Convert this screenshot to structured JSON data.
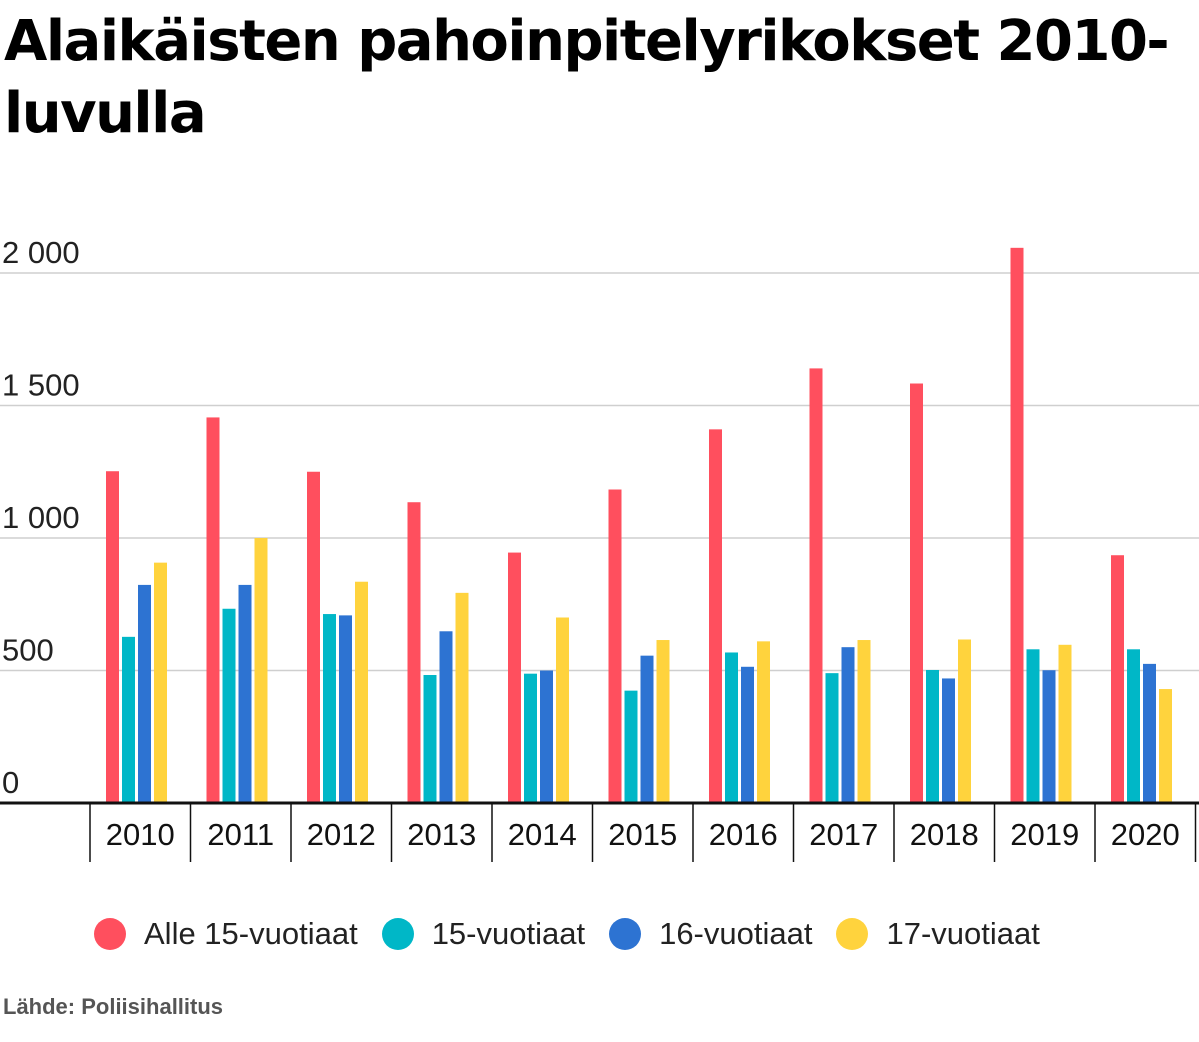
{
  "chart_data": {
    "type": "bar",
    "title": "Alaikäisten pahoinpitelyrikokset 2010-luvulla",
    "xlabel": "",
    "ylabel": "",
    "ylim": [
      0,
      2000
    ],
    "y_ticks": [
      0,
      500,
      1000,
      1500,
      2000
    ],
    "y_tick_labels": [
      "0",
      "500",
      "1 000",
      "1 500",
      "2 000"
    ],
    "grid": true,
    "legend_position": "bottom",
    "categories": [
      "2010",
      "2011",
      "2012",
      "2013",
      "2014",
      "2015",
      "2016",
      "2017",
      "2018",
      "2019",
      "2020"
    ],
    "series": [
      {
        "name": "Alle 15-vuotiaat",
        "color": "#ff4f5e",
        "values": [
          1252,
          1455,
          1250,
          1135,
          945,
          1183,
          1410,
          1640,
          1583,
          2095,
          935
        ]
      },
      {
        "name": "15-vuotiaat",
        "color": "#00b7c7",
        "values": [
          627,
          733,
          713,
          483,
          488,
          424,
          568,
          490,
          502,
          580,
          580
        ]
      },
      {
        "name": "16-vuotiaat",
        "color": "#2d73d2",
        "values": [
          823,
          823,
          708,
          648,
          500,
          556,
          514,
          588,
          470,
          501,
          525
        ]
      },
      {
        "name": "17-vuotiaat",
        "color": "#ffd33d",
        "values": [
          907,
          1000,
          835,
          793,
          700,
          615,
          610,
          615,
          617,
          597,
          430
        ]
      }
    ]
  },
  "source": "Lähde: Poliisihallitus"
}
